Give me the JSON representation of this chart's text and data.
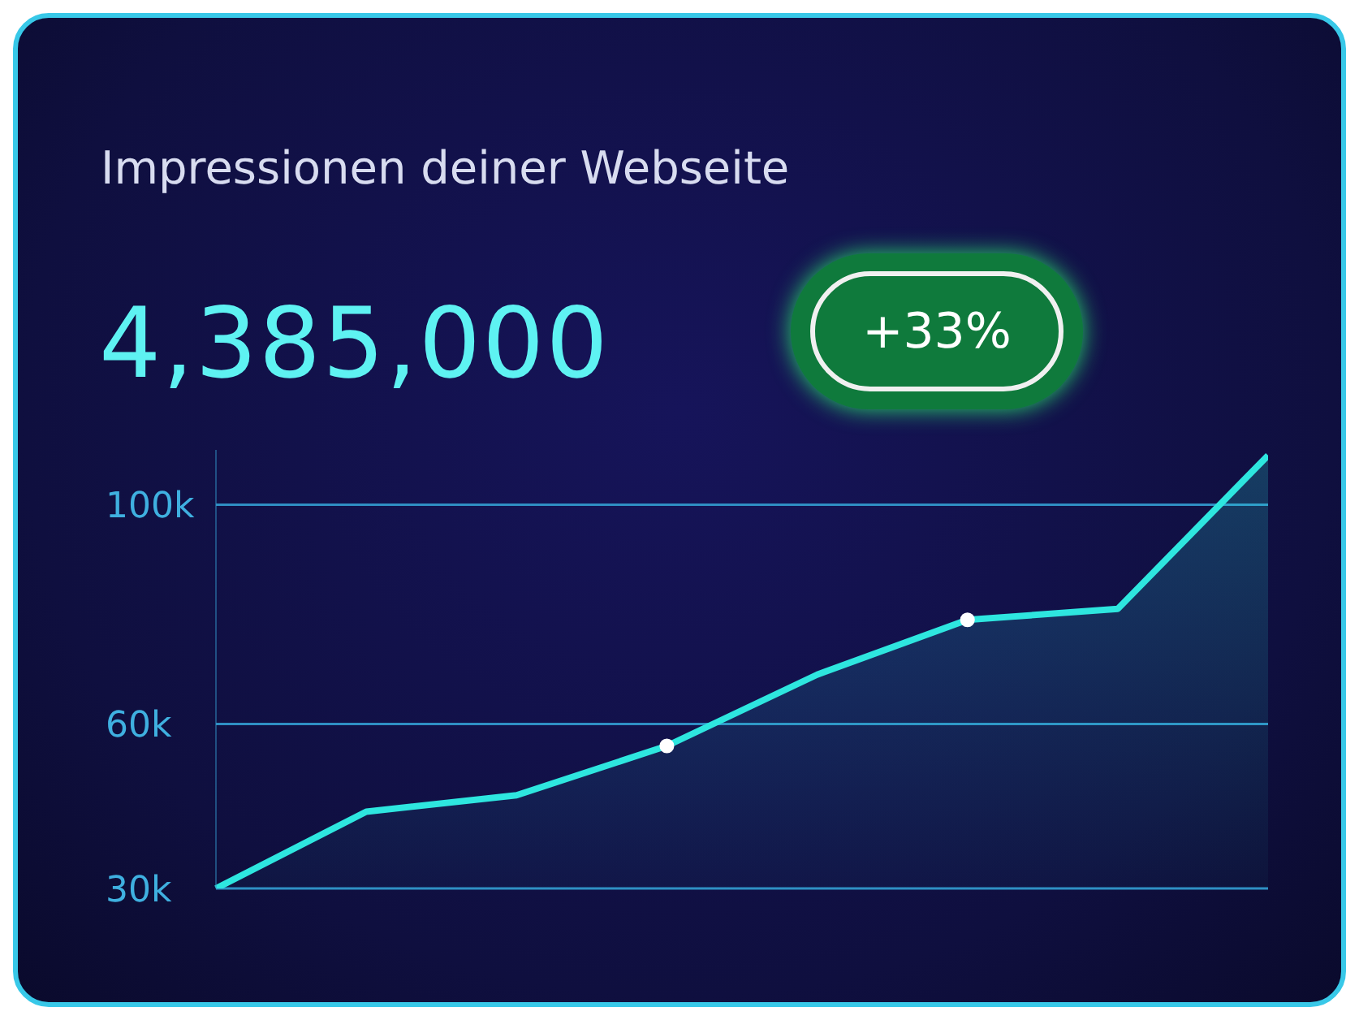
{
  "chart_data": {
    "type": "area",
    "title": "Impressionen deiner Webseite",
    "subtitle": "4,385,000",
    "annotations": [
      "+33%"
    ],
    "categories": [
      null,
      null,
      null,
      null,
      null,
      null,
      null,
      null
    ],
    "series": [
      {
        "color": "#2ee6df",
        "values": [
          30000,
          44000,
          47000,
          56000,
          69000,
          79000,
          81000,
          109000
        ]
      },
      {
        "type": "scatter",
        "color": "#ffffff",
        "marker": "circle",
        "values": [
          null,
          null,
          null,
          56000,
          null,
          79000,
          null,
          null
        ]
      }
    ],
    "ylim": [
      30000,
      110000
    ],
    "yticks": [
      {
        "value": 30000,
        "label": "30k"
      },
      {
        "value": 60000,
        "label": "60k"
      },
      {
        "value": 100000,
        "label": "100k"
      }
    ],
    "grid": "y"
  }
}
